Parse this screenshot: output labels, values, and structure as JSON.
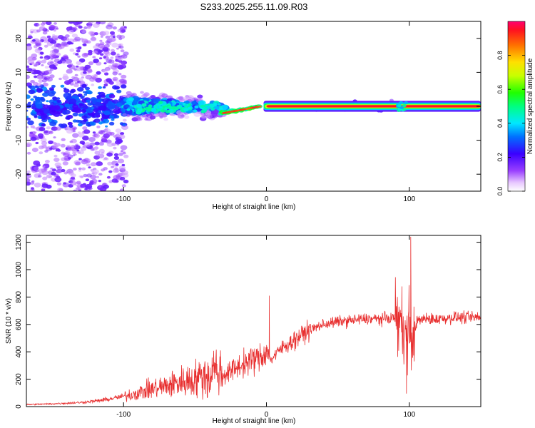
{
  "title": "S233.2025.255.11.09.R03",
  "colors": {
    "signal": "#e83030",
    "background": "#ffffff",
    "axis": "#000000"
  },
  "chart_data": [
    {
      "type": "heatmap",
      "xlabel": "Height of straight line (km)",
      "ylabel": "Frequency (Hz)",
      "xlim": [
        -168,
        150
      ],
      "ylim": [
        -25,
        25
      ],
      "x_ticks": [
        -100,
        0,
        100
      ],
      "y_ticks": [
        -20,
        -10,
        0,
        10,
        20
      ],
      "colorbar": {
        "label": "Normalized spectral amplitude",
        "range": [
          0,
          1
        ],
        "ticks": [
          0.0,
          0.2,
          0.4,
          0.6,
          0.8
        ],
        "colormap": "rainbow (purple-blue-cyan-green-yellow-red)"
      },
      "features": [
        {
          "segment": "noise",
          "x_range": [
            -168,
            -100
          ],
          "freq_spread_hz": 25,
          "amplitude": "0.0-0.3"
        },
        {
          "segment": "scattered",
          "x_range": [
            -100,
            -30
          ],
          "freq_spread_hz": 6,
          "amplitude": "0.2-0.5"
        },
        {
          "segment": "converging",
          "x_range": [
            -30,
            -5
          ],
          "freq_hz": [
            -2,
            0
          ],
          "amplitude": "0.6-0.9"
        },
        {
          "segment": "tone",
          "x_range": [
            0,
            150
          ],
          "freq_hz": 0,
          "amplitude": "0.9-1.0"
        }
      ]
    },
    {
      "type": "line",
      "xlabel": "Height of straight line (km)",
      "ylabel": "SNR (10 * v/v)",
      "xlim": [
        -168,
        150
      ],
      "ylim": [
        0,
        1250
      ],
      "x_ticks": [
        -100,
        0,
        100
      ],
      "y_ticks": [
        0,
        200,
        400,
        600,
        800,
        1000,
        1200
      ],
      "series": [
        {
          "color": "#e83030",
          "x": [
            -168,
            -150,
            -130,
            -120,
            -110,
            -100,
            -90,
            -80,
            -70,
            -60,
            -50,
            -40,
            -35,
            -30,
            -20,
            -10,
            -3,
            0,
            3,
            10,
            20,
            30,
            40,
            50,
            60,
            70,
            80,
            90,
            95,
            98,
            100,
            102,
            105,
            110,
            120,
            130,
            140,
            150
          ],
          "y": [
            15,
            20,
            30,
            40,
            55,
            75,
            100,
            130,
            150,
            180,
            200,
            240,
            270,
            230,
            290,
            340,
            360,
            420,
            340,
            420,
            490,
            560,
            600,
            620,
            630,
            640,
            640,
            650,
            600,
            500,
            650,
            450,
            620,
            640,
            640,
            650,
            650,
            650
          ]
        }
      ],
      "annotations": [
        {
          "x": 2,
          "y": 810,
          "note": "spike"
        },
        {
          "x": 101,
          "y": 1240,
          "note": "spike"
        },
        {
          "x": 98,
          "y": 95,
          "note": "dip"
        }
      ]
    }
  ]
}
